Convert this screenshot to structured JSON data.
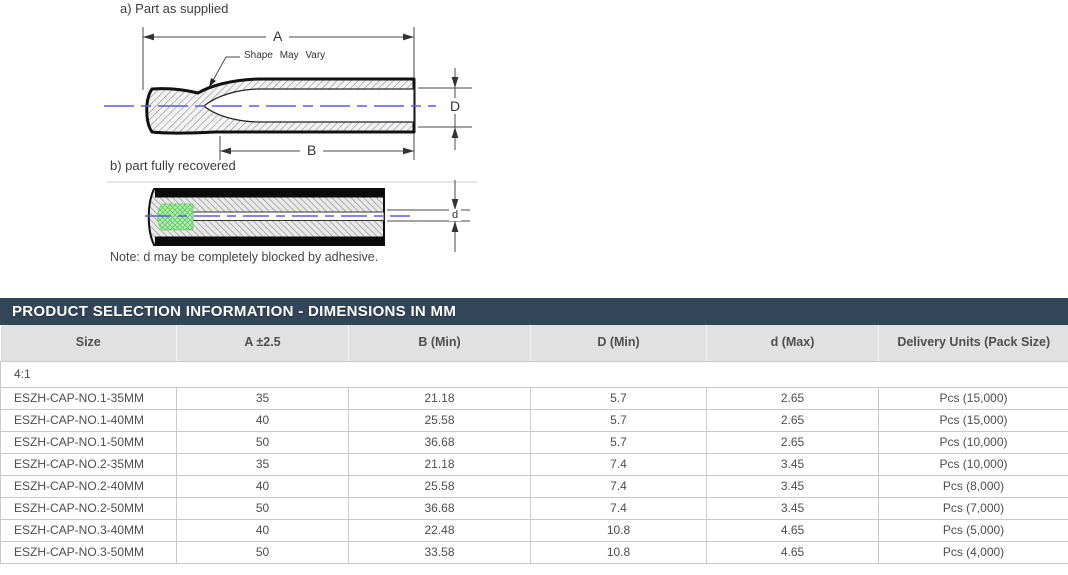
{
  "figures": {
    "figure_a": {
      "label": "a) Part as supplied",
      "shape_note": "Shape May Vary",
      "dim_overall_length": "A",
      "dim_recovered_length": "B",
      "dim_expanded_diameter": "D"
    },
    "figure_b": {
      "label": "b) part fully recovered",
      "dim_recovered_inner_diameter": "d"
    },
    "note": "Note: d may be completely blocked by adhesive.",
    "colors": {
      "centerline_blue": "#5a5ae0",
      "adhesive_green": "#b6edb6",
      "outline_black": "#111111"
    }
  },
  "table": {
    "title": "PRODUCT SELECTION INFORMATION - DIMENSIONS IN MM",
    "columns": [
      "Size",
      "A ±2.5",
      "B (Min)",
      "D (Min)",
      "d (Max)",
      "Delivery Units (Pack Size)"
    ],
    "group_label": "4:1",
    "rows": [
      [
        "ESZH-CAP-NO.1-35MM",
        "35",
        "21.18",
        "5.7",
        "2.65",
        "Pcs (15,000)"
      ],
      [
        "ESZH-CAP-NO.1-40MM",
        "40",
        "25.58",
        "5.7",
        "2.65",
        "Pcs (15,000)"
      ],
      [
        "ESZH-CAP-NO.1-50MM",
        "50",
        "36.68",
        "5.7",
        "2.65",
        "Pcs (10,000)"
      ],
      [
        "ESZH-CAP-NO.2-35MM",
        "35",
        "21.18",
        "7.4",
        "3.45",
        "Pcs (10,000)"
      ],
      [
        "ESZH-CAP-NO.2-40MM",
        "40",
        "25.58",
        "7.4",
        "3.45",
        "Pcs (8,000)"
      ],
      [
        "ESZH-CAP-NO.2-50MM",
        "50",
        "36.68",
        "7.4",
        "3.45",
        "Pcs (7,000)"
      ],
      [
        "ESZH-CAP-NO.3-40MM",
        "40",
        "22.48",
        "10.8",
        "4.65",
        "Pcs (5,000)"
      ],
      [
        "ESZH-CAP-NO.3-50MM",
        "50",
        "33.58",
        "10.8",
        "4.65",
        "Pcs (4,000)"
      ]
    ],
    "colors": {
      "title_bar_bg": "#334659",
      "header_row_bg": "#e1e1e1",
      "border": "#c9c9c9"
    }
  }
}
